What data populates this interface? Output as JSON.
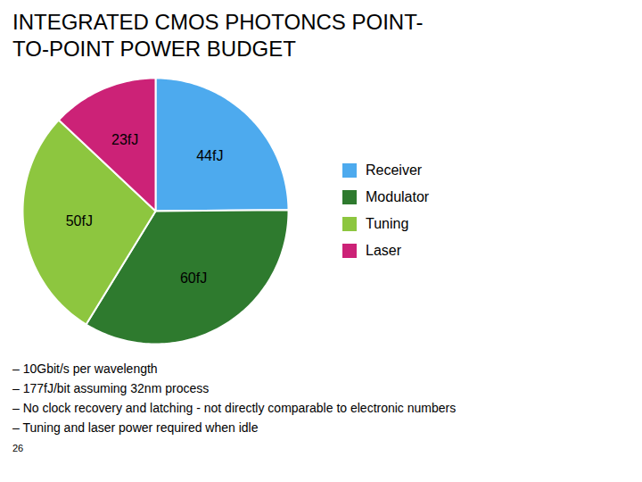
{
  "chart_data": {
    "type": "pie",
    "title": "INTEGRATED CMOS PHOTONCS POINT-\nTO-POINT POWER BUDGET",
    "categories": [
      "Receiver",
      "Modulator",
      "Tuning",
      "Laser"
    ],
    "values": [
      44,
      60,
      50,
      23
    ],
    "value_labels": [
      "44fJ",
      "60fJ",
      "50fJ",
      "23fJ"
    ],
    "data_labels": true,
    "colors": [
      "#4DAAEE",
      "#2E7A2E",
      "#8DC63F",
      "#CC2277"
    ],
    "legend": "right",
    "annotations": [
      "–  10Gbit/s per wavelength",
      "–  177fJ/bit assuming 32nm process",
      "–  No clock recovery and latching - not directly comparable to electronic numbers",
      "–  Tuning and laser power required when idle"
    ],
    "footnote": "26"
  }
}
